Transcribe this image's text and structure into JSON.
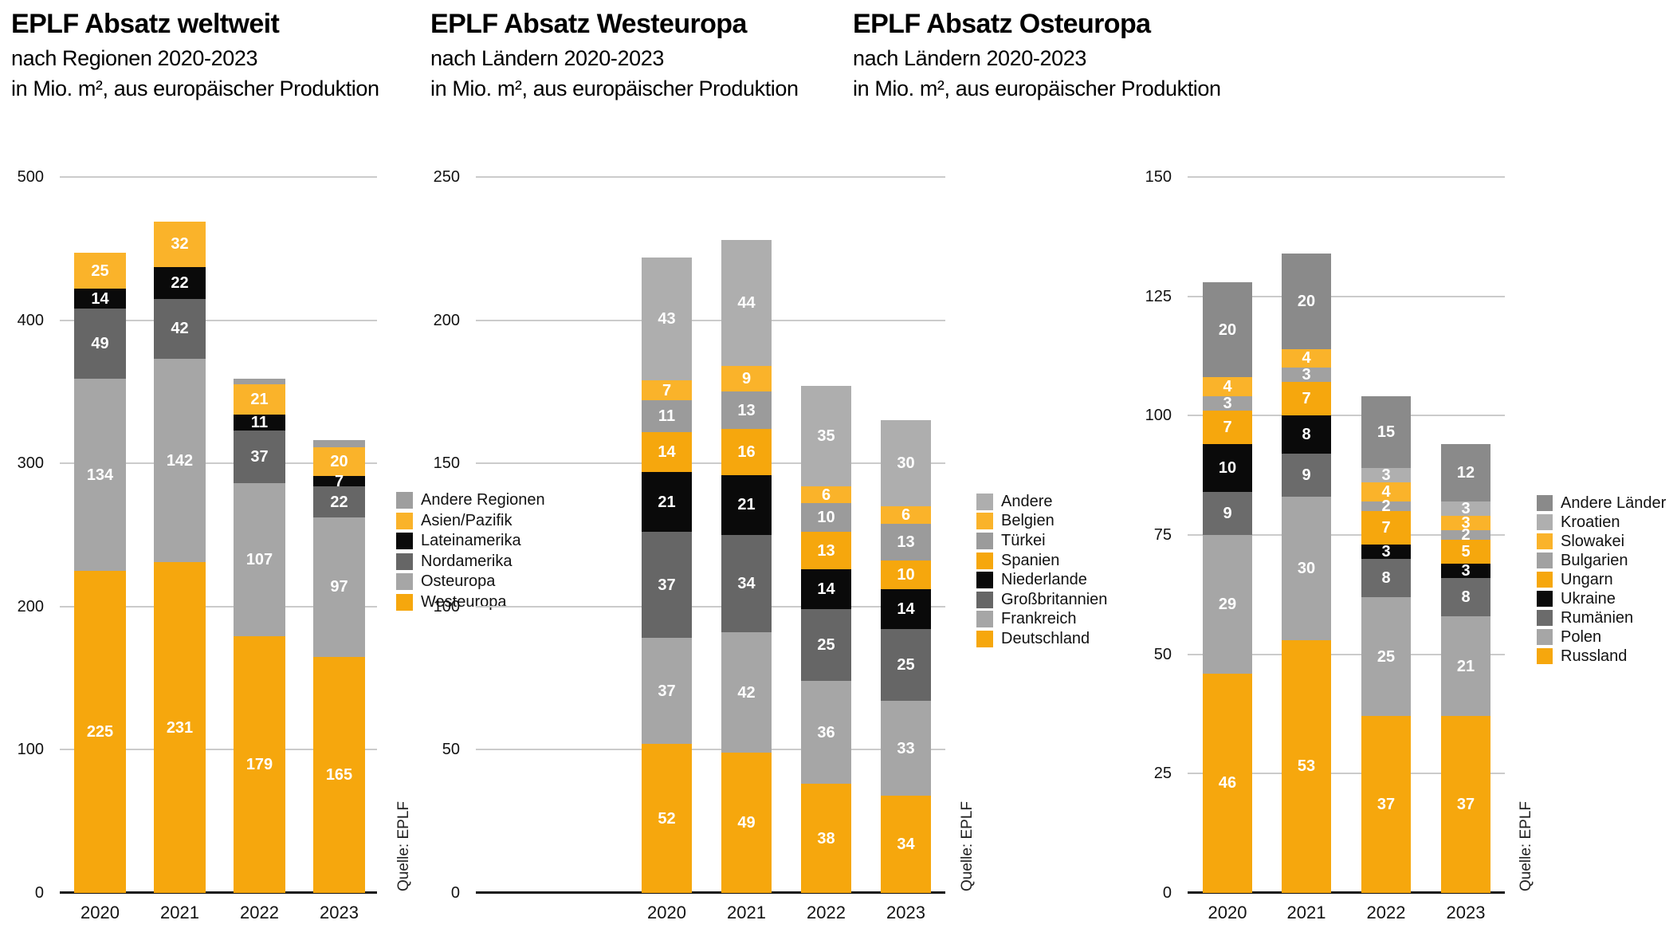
{
  "chart_data": [
    {
      "type": "bar",
      "stacked": true,
      "title": "EPLF Absatz weltweit",
      "subtitle_lines": [
        "nach Regionen 2020-2023",
        "in Mio. m², aus europäischer Produktion"
      ],
      "source": "Quelle: EPLF",
      "categories": [
        "2020",
        "2021",
        "2022",
        "2023"
      ],
      "ylim": [
        0,
        500
      ],
      "yticks": [
        0,
        100,
        200,
        300,
        400,
        500
      ],
      "grid": true,
      "legend_position": "right",
      "series_order_note": "top of stack first",
      "series": [
        {
          "name": "Andere Regionen",
          "color": "#9E9E9E",
          "values": [
            0,
            0,
            4,
            5
          ],
          "show_labels": false
        },
        {
          "name": "Asien/Pazifik",
          "color": "#FAB32A",
          "values": [
            25,
            32,
            21,
            20
          ]
        },
        {
          "name": "Lateinamerika",
          "color": "#0A0A0A",
          "values": [
            14,
            22,
            11,
            7
          ]
        },
        {
          "name": "Nordamerika",
          "color": "#666666",
          "values": [
            49,
            42,
            37,
            22
          ]
        },
        {
          "name": "Osteuropa",
          "color": "#A6A6A6",
          "values": [
            134,
            142,
            107,
            97
          ]
        },
        {
          "name": "Westeuropa",
          "color": "#F6A70D",
          "values": [
            225,
            231,
            179,
            165
          ]
        }
      ]
    },
    {
      "type": "bar",
      "stacked": true,
      "title": "EPLF Absatz Westeuropa",
      "subtitle_lines": [
        "nach Ländern 2020-2023",
        "in Mio. m², aus europäischer Produktion"
      ],
      "source": "Quelle: EPLF",
      "categories": [
        "2020",
        "2021",
        "2022",
        "2023"
      ],
      "ylim": [
        0,
        250
      ],
      "yticks": [
        0,
        50,
        100,
        150,
        200,
        250
      ],
      "grid": true,
      "legend_position": "right",
      "series": [
        {
          "name": "Andere",
          "color": "#AEAEAE",
          "values": [
            43,
            44,
            35,
            30
          ]
        },
        {
          "name": "Belgien",
          "color": "#FAB32A",
          "values": [
            7,
            9,
            6,
            6
          ]
        },
        {
          "name": "Türkei",
          "color": "#9B9B9B",
          "values": [
            11,
            13,
            10,
            13
          ]
        },
        {
          "name": "Spanien",
          "color": "#F6A70D",
          "values": [
            14,
            16,
            13,
            10
          ]
        },
        {
          "name": "Niederlande",
          "color": "#0A0A0A",
          "values": [
            21,
            21,
            14,
            14
          ]
        },
        {
          "name": "Großbritannien",
          "color": "#666666",
          "values": [
            37,
            34,
            25,
            25
          ]
        },
        {
          "name": "Frankreich",
          "color": "#A6A6A6",
          "values": [
            37,
            42,
            36,
            33
          ]
        },
        {
          "name": "Deutschland",
          "color": "#F6A70D",
          "values": [
            52,
            49,
            38,
            34
          ]
        }
      ]
    },
    {
      "type": "bar",
      "stacked": true,
      "title": "EPLF Absatz Osteuropa",
      "subtitle_lines": [
        "nach Ländern 2020-2023",
        "in Mio. m², aus europäischer Produktion"
      ],
      "source": "Quelle: EPLF",
      "categories": [
        "2020",
        "2021",
        "2022",
        "2023"
      ],
      "ylim": [
        0,
        150
      ],
      "yticks": [
        0,
        25,
        50,
        75,
        100,
        125,
        150
      ],
      "grid": true,
      "legend_position": "right",
      "series": [
        {
          "name": "Andere Länder",
          "color": "#8A8A8A",
          "values": [
            20,
            20,
            15,
            12
          ]
        },
        {
          "name": "Kroatien",
          "color": "#AFAFAF",
          "values": [
            0,
            0,
            3,
            3
          ]
        },
        {
          "name": "Slowakei",
          "color": "#FAB32A",
          "values": [
            4,
            4,
            4,
            3
          ]
        },
        {
          "name": "Bulgarien",
          "color": "#A1A1A1",
          "values": [
            3,
            3,
            2,
            2
          ]
        },
        {
          "name": "Ungarn",
          "color": "#F6A70D",
          "values": [
            7,
            7,
            7,
            5
          ]
        },
        {
          "name": "Ukraine",
          "color": "#0A0A0A",
          "values": [
            10,
            8,
            3,
            3
          ]
        },
        {
          "name": "Rumänien",
          "color": "#6B6B6B",
          "values": [
            9,
            9,
            8,
            8
          ]
        },
        {
          "name": "Polen",
          "color": "#A6A6A6",
          "values": [
            29,
            30,
            25,
            21
          ]
        },
        {
          "name": "Russland",
          "color": "#F6A70D",
          "values": [
            46,
            53,
            37,
            37
          ]
        }
      ]
    }
  ]
}
